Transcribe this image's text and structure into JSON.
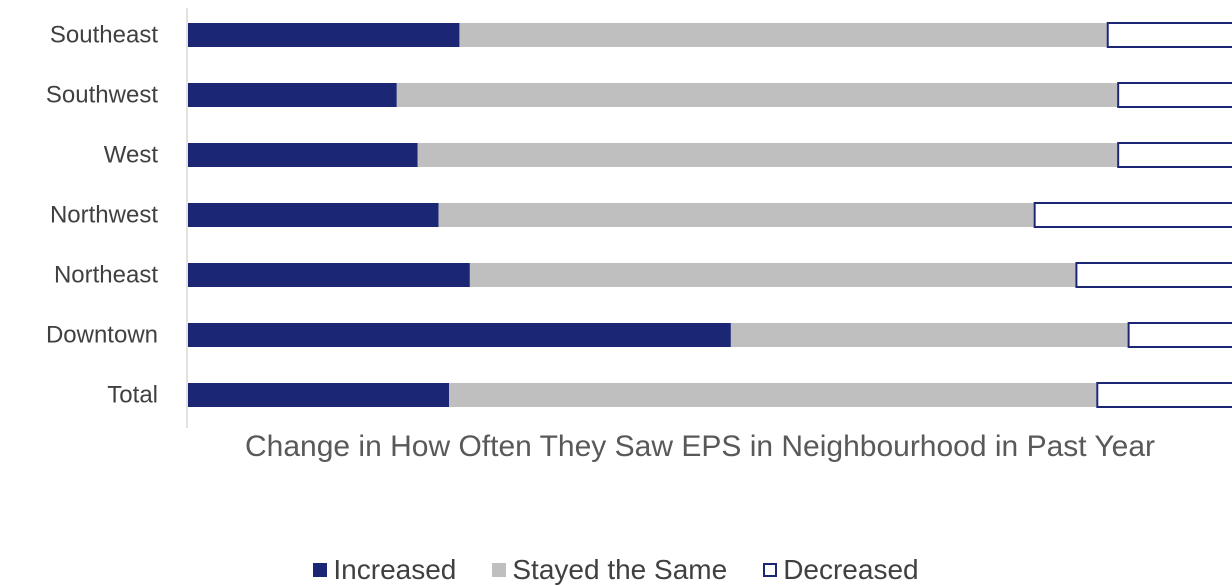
{
  "chart_data": {
    "type": "bar",
    "orientation": "horizontal",
    "stacked": true,
    "categories": [
      "Southeast",
      "Southwest",
      "West",
      "Northwest",
      "Northeast",
      "Downtown",
      "Total"
    ],
    "series": [
      {
        "name": "Increased",
        "values": [
          26,
          20,
          22,
          24,
          27,
          52,
          25
        ],
        "color": "#1b2675",
        "style": "filled"
      },
      {
        "name": "Stayed the Same",
        "values": [
          62,
          69,
          67,
          57,
          58,
          38,
          62
        ],
        "color": "#bfbfbf",
        "style": "filled"
      },
      {
        "name": "Decreased",
        "values": [
          12,
          11,
          11,
          19,
          15,
          10,
          13
        ],
        "color": "#1b2675",
        "style": "outline"
      }
    ],
    "xlabel": "Change in How Often They Saw EPS in Neighbourhood in Past Year",
    "ylabel": "",
    "xlim": [
      0,
      100
    ],
    "grid": false,
    "legend_position": "bottom"
  }
}
